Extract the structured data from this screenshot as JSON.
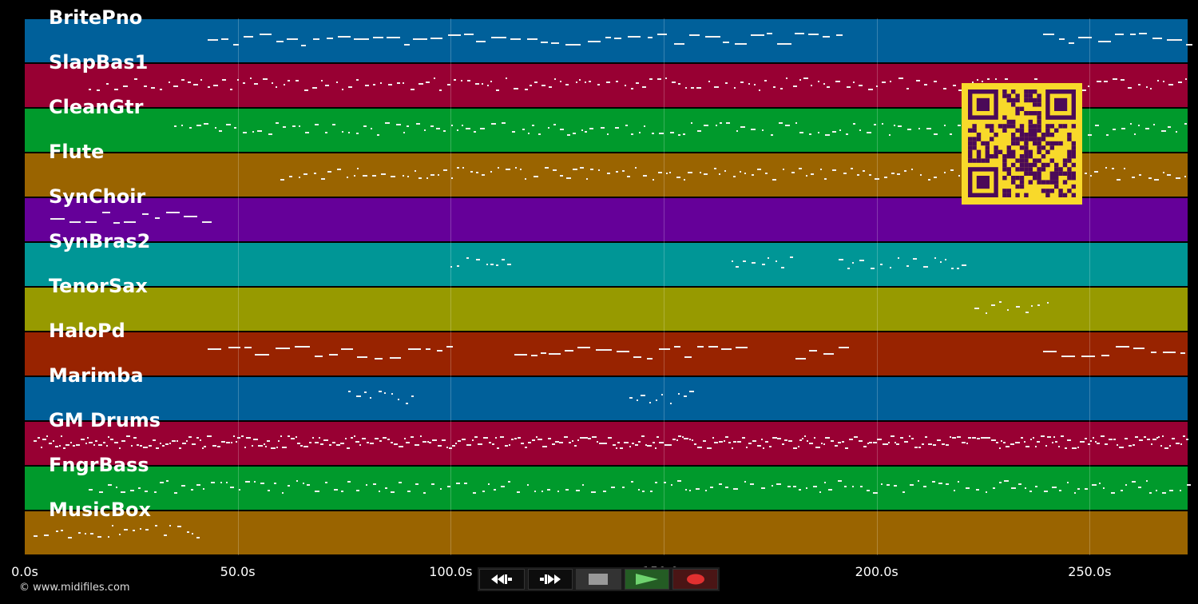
{
  "tracks": [
    {
      "name": "BritePno",
      "color": "#00609a"
    },
    {
      "name": "SlapBas1",
      "color": "#980033"
    },
    {
      "name": "CleanGtr",
      "color": "#009a2c"
    },
    {
      "name": "Flute",
      "color": "#9a6400"
    },
    {
      "name": "SynChoir",
      "color": "#650099"
    },
    {
      "name": "SynBras2",
      "color": "#009696"
    },
    {
      "name": "TenorSax",
      "color": "#979a00"
    },
    {
      "name": "HaloPd",
      "color": "#982300"
    },
    {
      "name": "Marimba",
      "color": "#00609a"
    },
    {
      "name": "GM Drums",
      "color": "#980033"
    },
    {
      "name": "FngrBass",
      "color": "#009a2c"
    },
    {
      "name": "MusicBox",
      "color": "#9a6400"
    }
  ],
  "timeline": {
    "ticks": [
      "0.0s",
      "50.0s",
      "100.0s",
      "150.0s",
      "200.0s",
      "250.0s"
    ],
    "duration_seconds": 273
  },
  "footer": {
    "copyright": "© www.midifiles.com"
  },
  "controls": {
    "rewind_icon": "rewind-icon",
    "forward_icon": "fast-forward-icon",
    "stop_icon": "stop-icon",
    "play_icon": "play-icon",
    "record_icon": "record-icon"
  },
  "qr": {
    "icon": "qr-code-icon",
    "fg": "#4b0a58",
    "bg": "#f8d92a"
  }
}
